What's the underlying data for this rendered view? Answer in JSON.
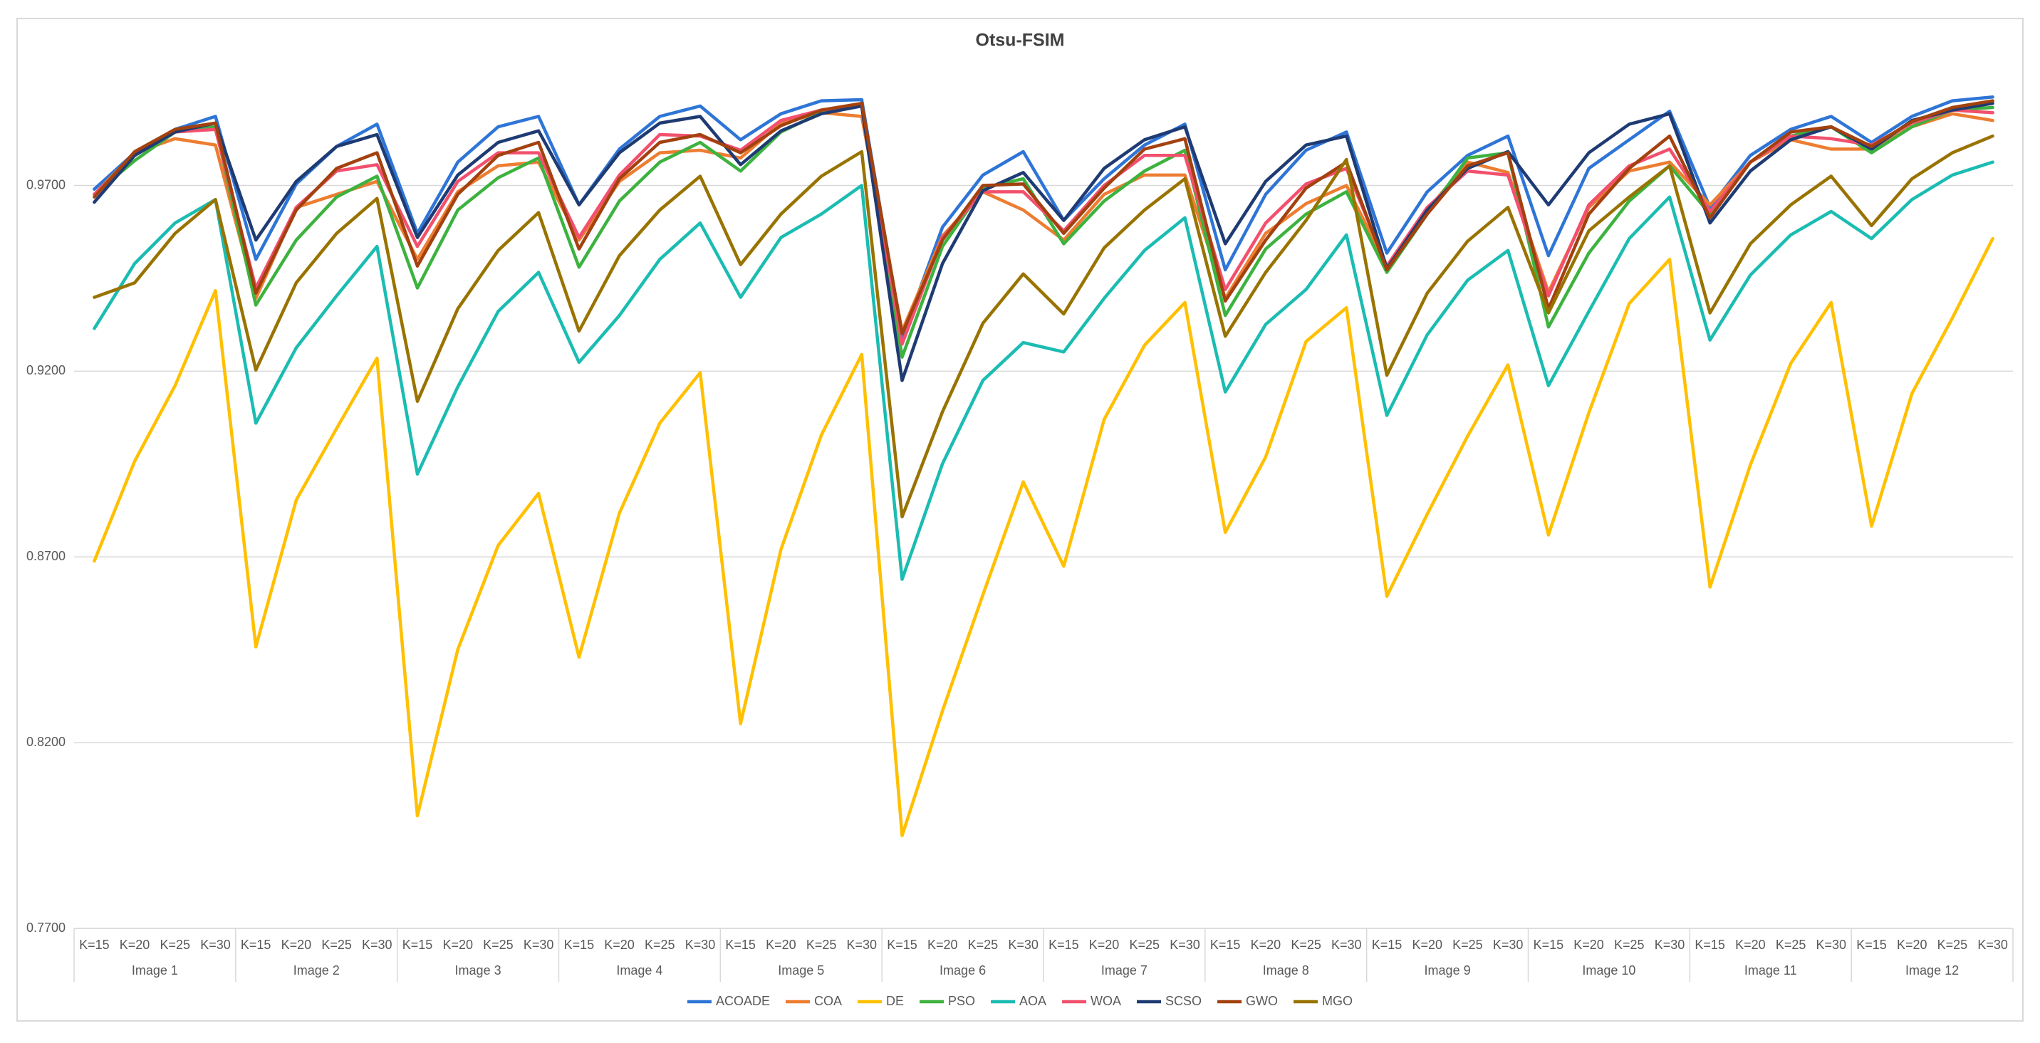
{
  "chart_data": {
    "type": "line",
    "title": "Otsu-FSIM",
    "categories": [
      "K=15",
      "K=20",
      "K=25",
      "K=30",
      "K=15",
      "K=20",
      "K=25",
      "K=30",
      "K=15",
      "K=20",
      "K=25",
      "K=30",
      "K=15",
      "K=20",
      "K=25",
      "K=30",
      "K=15",
      "K=20",
      "K=25",
      "K=30",
      "K=15",
      "K=20",
      "K=25",
      "K=30",
      "K=15",
      "K=20",
      "K=25",
      "K=30",
      "K=15",
      "K=20",
      "K=25",
      "K=30",
      "K=15",
      "K=20",
      "K=25",
      "K=30",
      "K=15",
      "K=20",
      "K=25",
      "K=30",
      "K=15",
      "K=20",
      "K=25",
      "K=30",
      "K=15",
      "K=20",
      "K=25",
      "K=30"
    ],
    "groups": [
      "Image 1",
      "Image 2",
      "Image 3",
      "Image 4",
      "Image 5",
      "Image 6",
      "Image 7",
      "Image 8",
      "Image 9",
      "Image 10",
      "Image 11",
      "Image 12"
    ],
    "ylim": [
      0.77,
      1.0
    ],
    "yticks": [
      {
        "value": 0.77,
        "label": "0.7700"
      },
      {
        "value": 0.82,
        "label": "0.8200"
      },
      {
        "value": 0.87,
        "label": "0.8700"
      },
      {
        "value": 0.92,
        "label": "0.9200"
      },
      {
        "value": 0.97,
        "label": "0.9700"
      }
    ],
    "grid": true,
    "legend": "bottom",
    "series": [
      {
        "name": "ACOADE",
        "color": "#2E75D6",
        "values": [
          0.969,
          0.9788,
          0.9851,
          0.9886,
          0.9501,
          0.9704,
          0.9805,
          0.9865,
          0.9571,
          0.9763,
          0.9858,
          0.9886,
          0.9648,
          0.9798,
          0.9886,
          0.9914,
          0.9823,
          0.9893,
          0.9928,
          0.9931,
          0.9291,
          0.9588,
          0.9728,
          0.9791,
          0.9606,
          0.9718,
          0.9809,
          0.9865,
          0.9473,
          0.9676,
          0.9795,
          0.9844,
          0.9518,
          0.9683,
          0.9781,
          0.9833,
          0.9511,
          0.9746,
          0.9823,
          0.99,
          0.9641,
          0.9781,
          0.9851,
          0.9886,
          0.9816,
          0.9886,
          0.9928,
          0.9938
        ]
      },
      {
        "name": "COA",
        "color": "#ED7D31",
        "values": [
          0.9676,
          0.9788,
          0.9826,
          0.9809,
          0.9396,
          0.9641,
          0.9676,
          0.9711,
          0.9501,
          0.9683,
          0.9753,
          0.9763,
          0.9553,
          0.9711,
          0.9788,
          0.9795,
          0.9774,
          0.9868,
          0.9896,
          0.9886,
          0.9308,
          0.9564,
          0.9683,
          0.9634,
          0.9553,
          0.9676,
          0.9728,
          0.9728,
          0.9396,
          0.9571,
          0.9651,
          0.97,
          0.9483,
          0.9634,
          0.9763,
          0.9735,
          0.9413,
          0.9641,
          0.9739,
          0.9763,
          0.9648,
          0.9763,
          0.9823,
          0.9798,
          0.9798,
          0.9858,
          0.9893,
          0.9875
        ]
      },
      {
        "name": "DE",
        "color": "#FFC000",
        "values": [
          0.8689,
          0.8958,
          0.9161,
          0.9417,
          0.8458,
          0.8853,
          0.9046,
          0.9235,
          0.8003,
          0.8451,
          0.8731,
          0.8871,
          0.843,
          0.8818,
          0.906,
          0.9196,
          0.8251,
          0.872,
          0.9028,
          0.9245,
          0.795,
          0.8286,
          0.8598,
          0.8902,
          0.8675,
          0.907,
          0.927,
          0.9385,
          0.8766,
          0.8969,
          0.928,
          0.9371,
          0.8594,
          0.8815,
          0.9025,
          0.9217,
          0.8759,
          0.9088,
          0.9382,
          0.9501,
          0.8619,
          0.8948,
          0.9221,
          0.9385,
          0.8783,
          0.914,
          0.9343,
          0.9557
        ]
      },
      {
        "name": "PSO",
        "color": "#3DB23F",
        "values": [
          0.9676,
          0.9767,
          0.9844,
          0.9858,
          0.9378,
          0.9553,
          0.9669,
          0.9725,
          0.9424,
          0.9634,
          0.9721,
          0.9774,
          0.948,
          0.9658,
          0.9763,
          0.9816,
          0.9739,
          0.9844,
          0.9896,
          0.9914,
          0.9238,
          0.9536,
          0.9693,
          0.9718,
          0.9543,
          0.9658,
          0.9739,
          0.9795,
          0.935,
          0.9529,
          0.9623,
          0.9683,
          0.9466,
          0.9623,
          0.9774,
          0.9788,
          0.9319,
          0.9518,
          0.9658,
          0.9753,
          0.9623,
          0.9763,
          0.9833,
          0.9858,
          0.9788,
          0.9858,
          0.9903,
          0.991
        ]
      },
      {
        "name": "AOA",
        "color": "#1BBCB2",
        "values": [
          0.9315,
          0.949,
          0.9599,
          0.9662,
          0.906,
          0.9263,
          0.9403,
          0.9536,
          0.8923,
          0.9158,
          0.9361,
          0.9466,
          0.9224,
          0.935,
          0.9501,
          0.9599,
          0.9399,
          0.956,
          0.9623,
          0.97,
          0.864,
          0.8951,
          0.9175,
          0.9277,
          0.9252,
          0.9396,
          0.9525,
          0.9613,
          0.9144,
          0.9326,
          0.942,
          0.9567,
          0.9081,
          0.9298,
          0.9445,
          0.9525,
          0.9161,
          0.9361,
          0.9557,
          0.9669,
          0.9284,
          0.9459,
          0.9567,
          0.963,
          0.9557,
          0.9662,
          0.9728,
          0.9763
        ]
      },
      {
        "name": "WOA",
        "color": "#F2506E",
        "values": [
          0.9676,
          0.9781,
          0.9844,
          0.9851,
          0.9424,
          0.9641,
          0.9739,
          0.9756,
          0.9536,
          0.9711,
          0.9788,
          0.9788,
          0.956,
          0.9728,
          0.9837,
          0.9833,
          0.9795,
          0.9875,
          0.9903,
          0.9914,
          0.9273,
          0.956,
          0.9683,
          0.9683,
          0.9578,
          0.97,
          0.9781,
          0.9781,
          0.942,
          0.9599,
          0.9704,
          0.9746,
          0.9483,
          0.9641,
          0.9739,
          0.9728,
          0.9403,
          0.9648,
          0.9753,
          0.9798,
          0.963,
          0.9763,
          0.9833,
          0.9826,
          0.9809,
          0.9868,
          0.9903,
          0.9896
        ]
      },
      {
        "name": "SCSO",
        "color": "#1F3B73",
        "values": [
          0.9655,
          0.9781,
          0.9844,
          0.9868,
          0.9553,
          0.9711,
          0.9805,
          0.9837,
          0.956,
          0.9728,
          0.9816,
          0.9847,
          0.9648,
          0.9788,
          0.9868,
          0.9886,
          0.9756,
          0.9847,
          0.9893,
          0.9914,
          0.9175,
          0.949,
          0.9686,
          0.9735,
          0.9606,
          0.9746,
          0.9823,
          0.9858,
          0.9543,
          0.9711,
          0.9809,
          0.9833,
          0.9476,
          0.9634,
          0.9746,
          0.9791,
          0.9648,
          0.9788,
          0.9865,
          0.9893,
          0.9599,
          0.9739,
          0.9823,
          0.9858,
          0.9798,
          0.9875,
          0.9903,
          0.9921
        ]
      },
      {
        "name": "GWO",
        "color": "#A3410F",
        "values": [
          0.9669,
          0.9791,
          0.9851,
          0.9868,
          0.941,
          0.9634,
          0.9746,
          0.9788,
          0.9483,
          0.9676,
          0.9781,
          0.9816,
          0.9529,
          0.9718,
          0.9816,
          0.9837,
          0.9788,
          0.9861,
          0.9903,
          0.9921,
          0.9301,
          0.9553,
          0.97,
          0.9704,
          0.9571,
          0.9693,
          0.9798,
          0.9826,
          0.9389,
          0.9553,
          0.9693,
          0.9763,
          0.9473,
          0.9623,
          0.9753,
          0.9788,
          0.9368,
          0.9623,
          0.9746,
          0.9833,
          0.9613,
          0.9763,
          0.9844,
          0.9858,
          0.9805,
          0.9872,
          0.991,
          0.9928
        ]
      },
      {
        "name": "MGO",
        "color": "#997300",
        "values": [
          0.9399,
          0.9438,
          0.9571,
          0.9662,
          0.9203,
          0.9438,
          0.9571,
          0.9665,
          0.9119,
          0.9368,
          0.9525,
          0.9627,
          0.9308,
          0.9511,
          0.9634,
          0.9725,
          0.9487,
          0.9623,
          0.9725,
          0.9791,
          0.8808,
          0.9091,
          0.9329,
          0.9462,
          0.9354,
          0.9532,
          0.9634,
          0.9718,
          0.9294,
          0.9466,
          0.9606,
          0.977,
          0.9189,
          0.941,
          0.955,
          0.9641,
          0.9357,
          0.9578,
          0.9669,
          0.9753,
          0.9357,
          0.9543,
          0.9648,
          0.9725,
          0.9592,
          0.9718,
          0.9788,
          0.9833
        ]
      }
    ]
  }
}
